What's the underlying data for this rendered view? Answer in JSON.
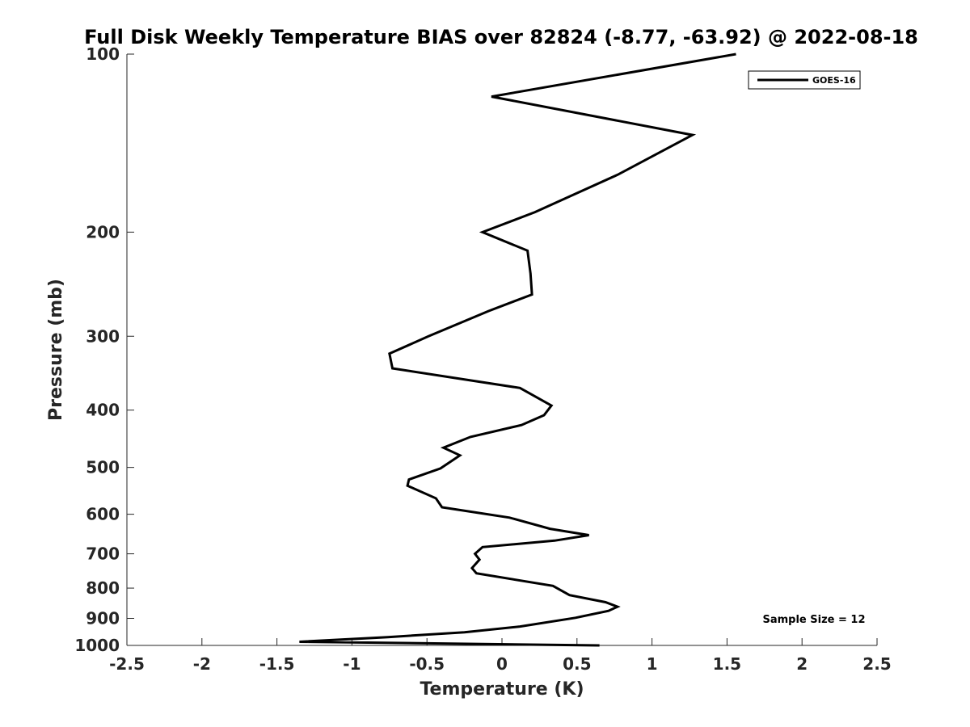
{
  "chart_data": {
    "type": "line",
    "title": "Full Disk Weekly Temperature BIAS over 82824 (-8.77, -63.92) @ 2022-08-18",
    "xlabel": "Temperature (K)",
    "ylabel": "Pressure (mb)",
    "xlim": [
      -2.5,
      2.5
    ],
    "ylim": [
      1000,
      100
    ],
    "y_scale": "log",
    "y_reversed": true,
    "grid": false,
    "legend_position": "top-right",
    "x_ticks": [
      "-2.5",
      "-2",
      "-1.5",
      "-1",
      "-0.5",
      "0",
      "0.5",
      "1",
      "1.5",
      "2",
      "2.5"
    ],
    "x_tick_values": [
      -2.5,
      -2,
      -1.5,
      -1,
      -0.5,
      0,
      0.5,
      1,
      1.5,
      2,
      2.5
    ],
    "y_ticks": [
      "100",
      "200",
      "300",
      "400",
      "500",
      "600",
      "700",
      "800",
      "900",
      "1000"
    ],
    "y_tick_values": [
      100,
      200,
      300,
      400,
      500,
      600,
      700,
      800,
      900,
      1000
    ],
    "annotation": "Sample Size = 12",
    "series": [
      {
        "name": "GOES-16",
        "color": "#000000",
        "points": [
          [
            1.56,
            100
          ],
          [
            -0.07,
            118
          ],
          [
            1.27,
            137
          ],
          [
            0.77,
            160
          ],
          [
            0.22,
            185
          ],
          [
            -0.13,
            200
          ],
          [
            0.17,
            215
          ],
          [
            0.19,
            235
          ],
          [
            0.2,
            255
          ],
          [
            -0.09,
            272
          ],
          [
            -0.49,
            300
          ],
          [
            -0.75,
            321
          ],
          [
            -0.73,
            340
          ],
          [
            0.12,
            367
          ],
          [
            0.33,
            393
          ],
          [
            0.28,
            408
          ],
          [
            0.13,
            424
          ],
          [
            -0.21,
            444
          ],
          [
            -0.39,
            463
          ],
          [
            -0.28,
            477
          ],
          [
            -0.41,
            502
          ],
          [
            -0.62,
            524
          ],
          [
            -0.63,
            537
          ],
          [
            -0.44,
            564
          ],
          [
            -0.4,
            584
          ],
          [
            0.05,
            608
          ],
          [
            0.32,
            635
          ],
          [
            0.58,
            651
          ],
          [
            0.35,
            665
          ],
          [
            -0.13,
            682
          ],
          [
            -0.18,
            700
          ],
          [
            -0.15,
            716
          ],
          [
            -0.2,
            740
          ],
          [
            -0.17,
            755
          ],
          [
            0.34,
            793
          ],
          [
            0.45,
            822
          ],
          [
            0.69,
            845
          ],
          [
            0.77,
            860
          ],
          [
            0.71,
            874
          ],
          [
            0.49,
            898
          ],
          [
            0.12,
            929
          ],
          [
            -0.25,
            950
          ],
          [
            -0.76,
            968
          ],
          [
            -1.35,
            986
          ],
          [
            0.65,
            1000
          ]
        ]
      }
    ]
  }
}
